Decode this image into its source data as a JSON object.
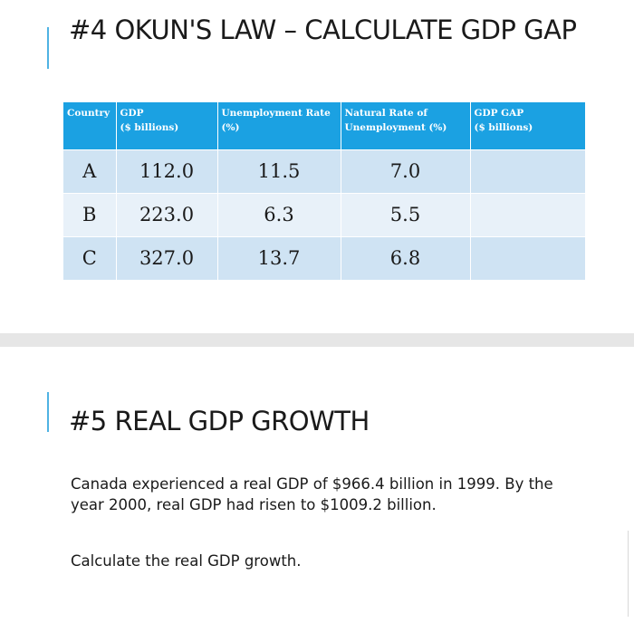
{
  "slide1": {
    "title": "#4 OKUN'S LAW – CALCULATE GDP GAP",
    "table": {
      "headers": [
        {
          "line1": "Country",
          "line2": ""
        },
        {
          "line1": "GDP",
          "line2": "($ billions)"
        },
        {
          "line1": "Unemployment Rate",
          "line2": "(%)"
        },
        {
          "line1": "Natural Rate of",
          "line2": "Unemployment (%)"
        },
        {
          "line1": "GDP GAP",
          "line2": "($ billions)"
        }
      ],
      "rows": [
        {
          "country": "A",
          "gdp": "112.0",
          "unemployment": "11.5",
          "natural": "7.0",
          "gap": ""
        },
        {
          "country": "B",
          "gdp": "223.0",
          "unemployment": "6.3",
          "natural": "5.5",
          "gap": ""
        },
        {
          "country": "C",
          "gdp": "327.0",
          "unemployment": "13.7",
          "natural": "6.8",
          "gap": ""
        }
      ]
    }
  },
  "slide2": {
    "title": "#5 REAL GDP GROWTH",
    "paragraph1": "Canada experienced a real GDP of $966.4 billion in 1999. By the year 2000, real GDP had risen to $1009.2 billion.",
    "paragraph2": "Calculate the real GDP growth."
  },
  "colors": {
    "header_blue": "#1ba1e2",
    "row_odd": "#cfe3f3",
    "row_even": "#e8f1f9",
    "accent": "#4fb3e3"
  }
}
